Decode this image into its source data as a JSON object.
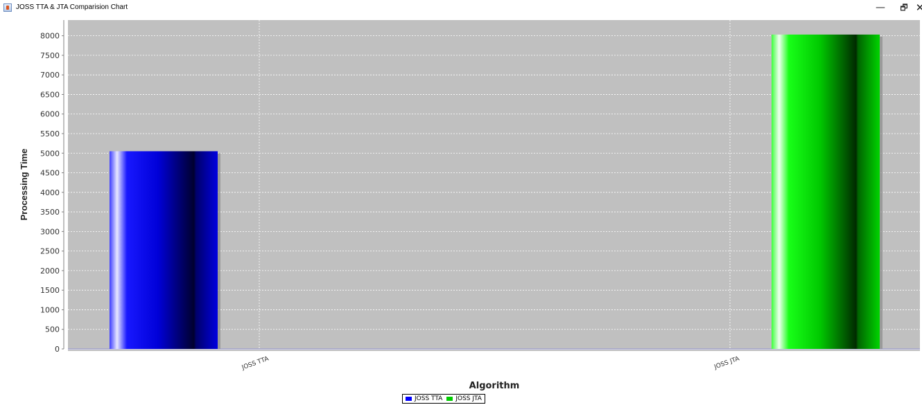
{
  "window": {
    "title": "JOSS TTA & JTA Comparision Chart",
    "minimize_glyph": "—",
    "maximize_glyph": "🗗",
    "close_glyph": "✕",
    "icon": "java-app-icon"
  },
  "chart_data": {
    "type": "bar",
    "categories": [
      "JOSS TTA",
      "JOSS JTA"
    ],
    "series": [
      {
        "name": "JOSS TTA",
        "values": [
          5050,
          null
        ],
        "color": "#0000ff"
      },
      {
        "name": "JOSS JTA",
        "values": [
          null,
          8030
        ],
        "color": "#00ff00"
      }
    ],
    "xlabel": "Algorithm",
    "ylabel": "Processing Time",
    "ylim": [
      0,
      8400
    ],
    "yticks": [
      0,
      500,
      1000,
      1500,
      2000,
      2500,
      3000,
      3500,
      4000,
      4500,
      5000,
      5500,
      6000,
      6500,
      7000,
      7500,
      8000
    ],
    "grid": true,
    "legend_position": "bottom-center",
    "plot_background": "#c0c0c0"
  }
}
